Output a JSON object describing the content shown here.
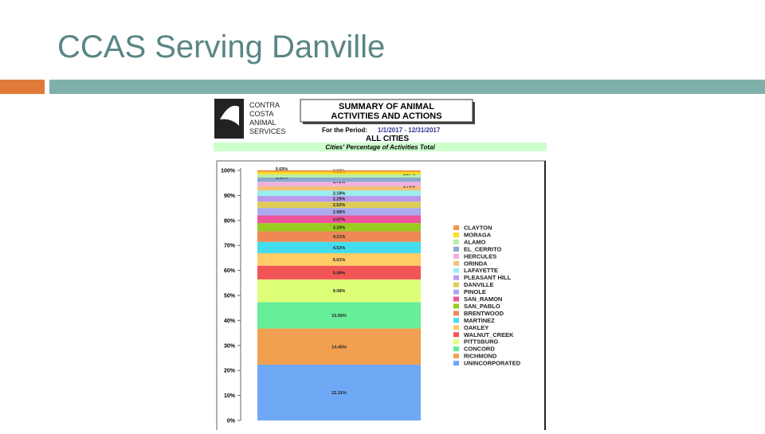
{
  "slide": {
    "title": "CCAS Serving Danville"
  },
  "report": {
    "org": [
      "CONTRA",
      "COSTA",
      "ANIMAL",
      "SERVICES"
    ],
    "heading": [
      "SUMMARY OF ANIMAL",
      "ACTIVITIES AND ACTIONS"
    ],
    "period_label": "For the Period:",
    "period": "1/1/2017 - 12/31/2017",
    "scope": "ALL CITIES",
    "subtitle": "Cities' Percentage of Activities Total"
  },
  "chart_data": {
    "type": "stacked_bar",
    "stacked": true,
    "ylim": [
      0,
      100
    ],
    "yticks": [
      {
        "value": 0,
        "label": "0%"
      },
      {
        "value": 10,
        "label": "10%"
      },
      {
        "value": 20,
        "label": "20%"
      },
      {
        "value": 30,
        "label": "30%"
      },
      {
        "value": 40,
        "label": "40%"
      },
      {
        "value": 50,
        "label": "50%"
      },
      {
        "value": 60,
        "label": "60%"
      },
      {
        "value": 70,
        "label": "70%"
      },
      {
        "value": 80,
        "label": "80%"
      },
      {
        "value": 90,
        "label": "90%"
      },
      {
        "value": 100,
        "label": "100%"
      }
    ],
    "legend": "right",
    "series": [
      {
        "name": "UNINCORPORATED",
        "color": "#6fa8f5",
        "values": [
          22.31
        ],
        "value_labels": [
          "22.31%"
        ]
      },
      {
        "name": "RICHMOND",
        "color": "#f0a050",
        "values": [
          14.45
        ],
        "value_labels": [
          "14.45%"
        ]
      },
      {
        "name": "CONCORD",
        "color": "#66ee99",
        "values": [
          10.56
        ],
        "value_labels": [
          "10.56%"
        ]
      },
      {
        "name": "PITTSBURG",
        "color": "#ddff77",
        "values": [
          9.08
        ],
        "value_labels": [
          "9.08%"
        ]
      },
      {
        "name": "WALNUT_CREEK",
        "color": "#f25555",
        "values": [
          5.49
        ],
        "value_labels": [
          "5.49%"
        ]
      },
      {
        "name": "OAKLEY",
        "color": "#ffcc66",
        "values": [
          5.01
        ],
        "value_labels": [
          "5.01%"
        ]
      },
      {
        "name": "MARTINEZ",
        "color": "#44ddee",
        "values": [
          4.53
        ],
        "value_labels": [
          "4.53%"
        ]
      },
      {
        "name": "BRENTWOOD",
        "color": "#ee8855",
        "values": [
          4.21
        ],
        "value_labels": [
          "4.21%"
        ]
      },
      {
        "name": "SAN_PABLO",
        "color": "#99cc22",
        "values": [
          3.29
        ],
        "value_labels": [
          "3.29%"
        ]
      },
      {
        "name": "SAN_RAMON",
        "color": "#ee5599",
        "values": [
          3.07
        ],
        "value_labels": [
          "3.07%"
        ]
      },
      {
        "name": "PINOLE",
        "color": "#aaaaee",
        "values": [
          2.98
        ],
        "value_labels": [
          "2.98%"
        ]
      },
      {
        "name": "DANVILLE",
        "color": "#ddcc55",
        "values": [
          2.52
        ],
        "value_labels": [
          "2.52%"
        ]
      },
      {
        "name": "PLEASANT HILL",
        "color": "#bb99ee",
        "values": [
          2.29
        ],
        "value_labels": [
          "2.29%"
        ]
      },
      {
        "name": "LAFAYETTE",
        "color": "#99eeee",
        "values": [
          2.18
        ],
        "value_labels": [
          "2.18%"
        ]
      },
      {
        "name": "ORINDA",
        "color": "#f4c07a",
        "values": [
          1.76
        ],
        "value_labels": [
          "1.76%"
        ]
      },
      {
        "name": "HERCULES",
        "color": "#f0b0e0",
        "values": [
          1.72
        ],
        "value_labels": [
          "1.72%"
        ]
      },
      {
        "name": "EL_CERRITO",
        "color": "#88aacc",
        "values": [
          1.68
        ],
        "value_labels": [
          "1.68%"
        ]
      },
      {
        "name": "ALAMO",
        "color": "#bbeeaa",
        "values": [
          1.27
        ],
        "value_labels": [
          "1.27%"
        ]
      },
      {
        "name": "MORAGA",
        "color": "#ffdd22",
        "values": [
          0.98
        ],
        "value_labels": [
          "0.98%"
        ]
      },
      {
        "name": "CLAYTON",
        "color": "#ee9944",
        "values": [
          0.69
        ],
        "value_labels": [
          "0.69%"
        ]
      }
    ]
  }
}
